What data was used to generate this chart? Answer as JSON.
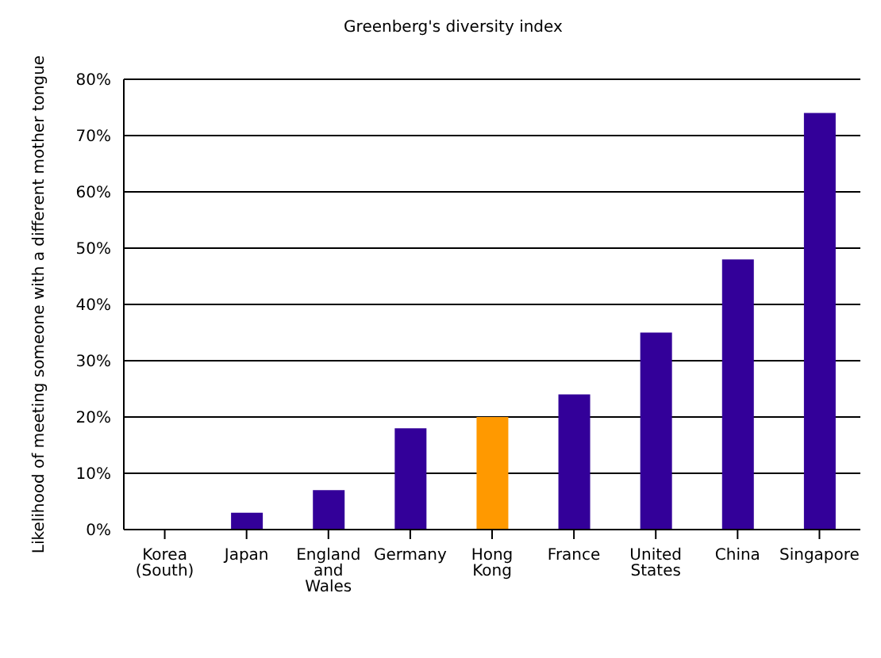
{
  "chart_data": {
    "type": "bar",
    "title": "Greenberg's diversity index",
    "ylabel": "Likelihood of meeting someone with a different mother tongue",
    "categories": [
      "Korea (South)",
      "Japan",
      "England and Wales",
      "Germany",
      "Hong Kong",
      "France",
      "United States",
      "China",
      "Singapore"
    ],
    "values": [
      0,
      3,
      7,
      18,
      20,
      24,
      35,
      48,
      74
    ],
    "colors": [
      "#330099",
      "#330099",
      "#330099",
      "#330099",
      "#ff9900",
      "#330099",
      "#330099",
      "#330099",
      "#330099"
    ],
    "ylim": [
      0,
      80
    ],
    "yticks": [
      {
        "value": 0,
        "label": "0%"
      },
      {
        "value": 10,
        "label": "10%"
      },
      {
        "value": 20,
        "label": "20%"
      },
      {
        "value": 30,
        "label": "30%"
      },
      {
        "value": 40,
        "label": "40%"
      },
      {
        "value": 50,
        "label": "50%"
      },
      {
        "value": 60,
        "label": "60%"
      },
      {
        "value": 70,
        "label": "70%"
      },
      {
        "value": 80,
        "label": "80%"
      }
    ],
    "grid": "y",
    "legend": false
  }
}
